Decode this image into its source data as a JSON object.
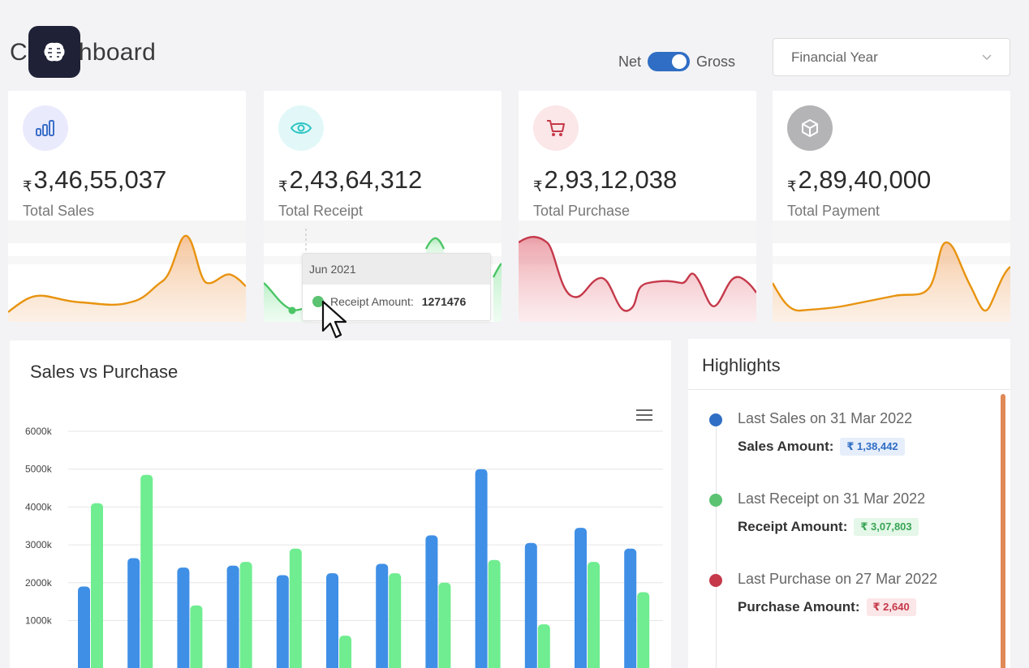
{
  "header": {
    "title": "C    Dashboard",
    "toggle_left": "Net",
    "toggle_right": "Gross",
    "select_value": "Financial Year"
  },
  "cards": [
    {
      "currency": "₹",
      "value": "3,46,55,037",
      "label": "Total Sales",
      "icon": "bar-chart-icon",
      "color": "#e8930f"
    },
    {
      "currency": "₹",
      "value": "2,43,64,312",
      "label": "Total Receipt",
      "icon": "eye-icon",
      "color": "#4bc566"
    },
    {
      "currency": "₹",
      "value": "2,93,12,038",
      "label": "Total Purchase",
      "icon": "cart-icon",
      "color": "#c5394a"
    },
    {
      "currency": "₹",
      "value": "2,89,40,000",
      "label": "Total Payment",
      "icon": "box-icon",
      "color": "#e8930f"
    }
  ],
  "tooltip": {
    "title": "Jun 2021",
    "label": "Receipt Amount:",
    "value": "1271476"
  },
  "chart_data": {
    "type": "bar",
    "title": "Sales vs Purchase",
    "yticks": [
      "6000k",
      "5000k",
      "4000k",
      "3000k",
      "2000k",
      "1000k"
    ],
    "ylim": [
      0,
      6000
    ],
    "series": [
      {
        "color": "#3f8fe6",
        "values": [
          1900,
          2650,
          2400,
          2450,
          2200,
          2250,
          2500,
          3250,
          5000,
          3050,
          3450,
          2900
        ]
      },
      {
        "color": "#6fed90",
        "values": [
          4100,
          4850,
          1400,
          2550,
          2900,
          600,
          2250,
          2000,
          2600,
          900,
          2550,
          1750
        ]
      }
    ]
  },
  "highlights": {
    "title": "Highlights",
    "items": [
      {
        "label": "Last Sales on 31 Mar 2022",
        "amount_label": "Sales Amount:",
        "amount": "₹ 1,38,442",
        "color": "#2f6ec4",
        "badge_bg": "#e6eefb",
        "badge_fg": "#2f6ec4"
      },
      {
        "label": "Last Receipt on 31 Mar 2022",
        "amount_label": "Receipt Amount:",
        "amount": "₹ 3,07,803",
        "color": "#5bc372",
        "badge_bg": "#e4f7e8",
        "badge_fg": "#3aa556"
      },
      {
        "label": "Last Purchase on 27 Mar 2022",
        "amount_label": "Purchase Amount:",
        "amount": "₹ 2,640",
        "color": "#c5394a",
        "badge_bg": "#fbe6e8",
        "badge_fg": "#c5394a"
      }
    ]
  }
}
